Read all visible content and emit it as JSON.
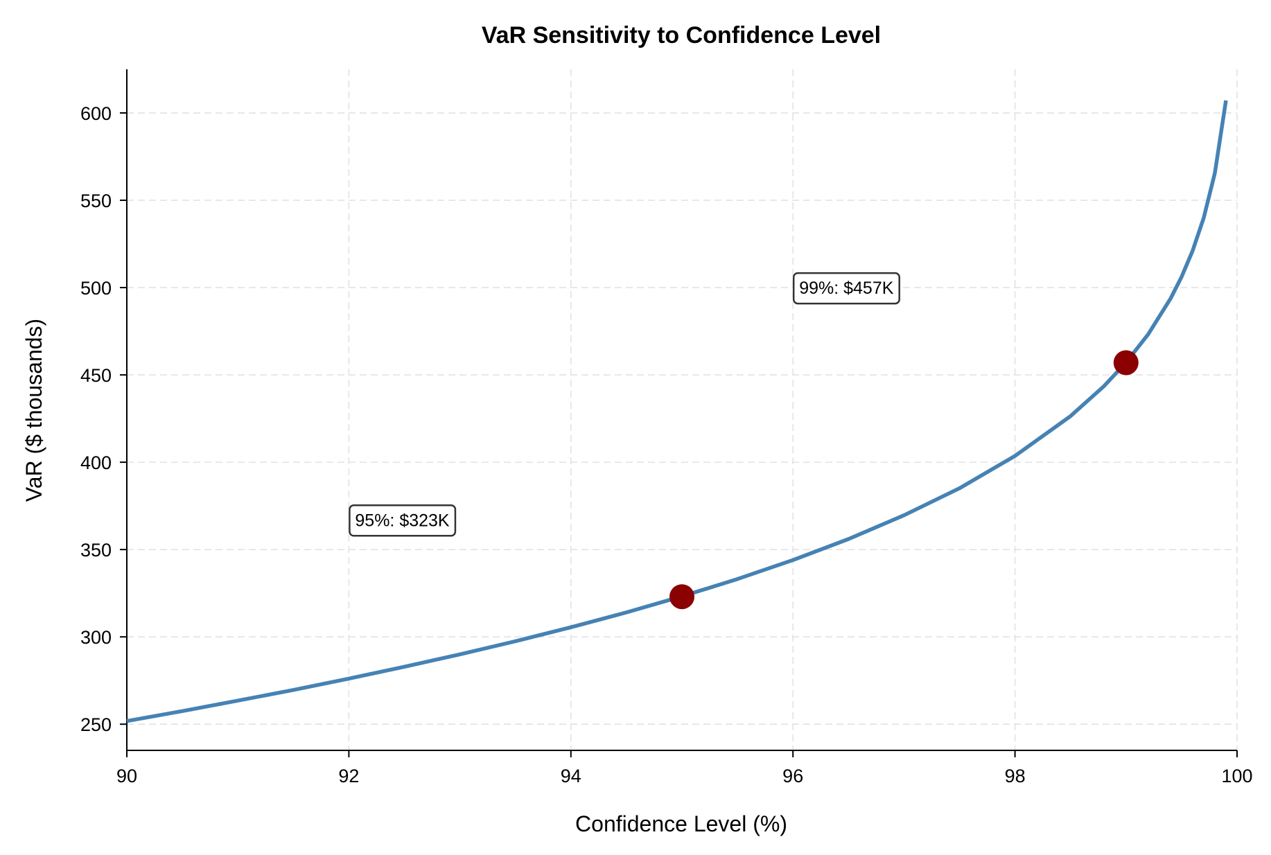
{
  "chart_data": {
    "type": "line",
    "title": "VaR Sensitivity to Confidence Level",
    "xlabel": "Confidence Level (%)",
    "ylabel": "VaR ($ thousands)",
    "xlim": [
      90,
      100
    ],
    "ylim": [
      235,
      625
    ],
    "xticks": [
      90,
      92,
      94,
      96,
      98,
      100
    ],
    "yticks": [
      250,
      300,
      350,
      400,
      450,
      500,
      550,
      600
    ],
    "grid": true,
    "line_color": "#4682b4",
    "marker_color": "#8b0000",
    "series": [
      {
        "x": [
          90,
          90.5,
          91,
          91.5,
          92,
          92.5,
          93,
          93.5,
          94,
          94.5,
          95,
          95.5,
          96,
          96.5,
          97,
          97.5,
          98,
          98.5,
          98.8,
          99,
          99.2,
          99.4,
          99.5,
          99.6,
          99.7,
          99.8,
          99.9
        ],
        "y": [
          251.8,
          257.5,
          263.5,
          269.6,
          276.1,
          282.9,
          290.0,
          297.5,
          305.5,
          314.0,
          323.2,
          333.1,
          344.0,
          356.0,
          369.6,
          385.1,
          403.6,
          426.4,
          443.5,
          457.1,
          473.3,
          493.6,
          506.1,
          521.1,
          539.9,
          565.6,
          607.2
        ]
      }
    ],
    "highlights": [
      {
        "x": 95,
        "y": 323
      },
      {
        "x": 99,
        "y": 457
      }
    ],
    "annotations": [
      {
        "text": "95%: $323K",
        "x": 92,
        "y": 367
      },
      {
        "text": "99%: $457K",
        "x": 96,
        "y": 500
      }
    ]
  }
}
